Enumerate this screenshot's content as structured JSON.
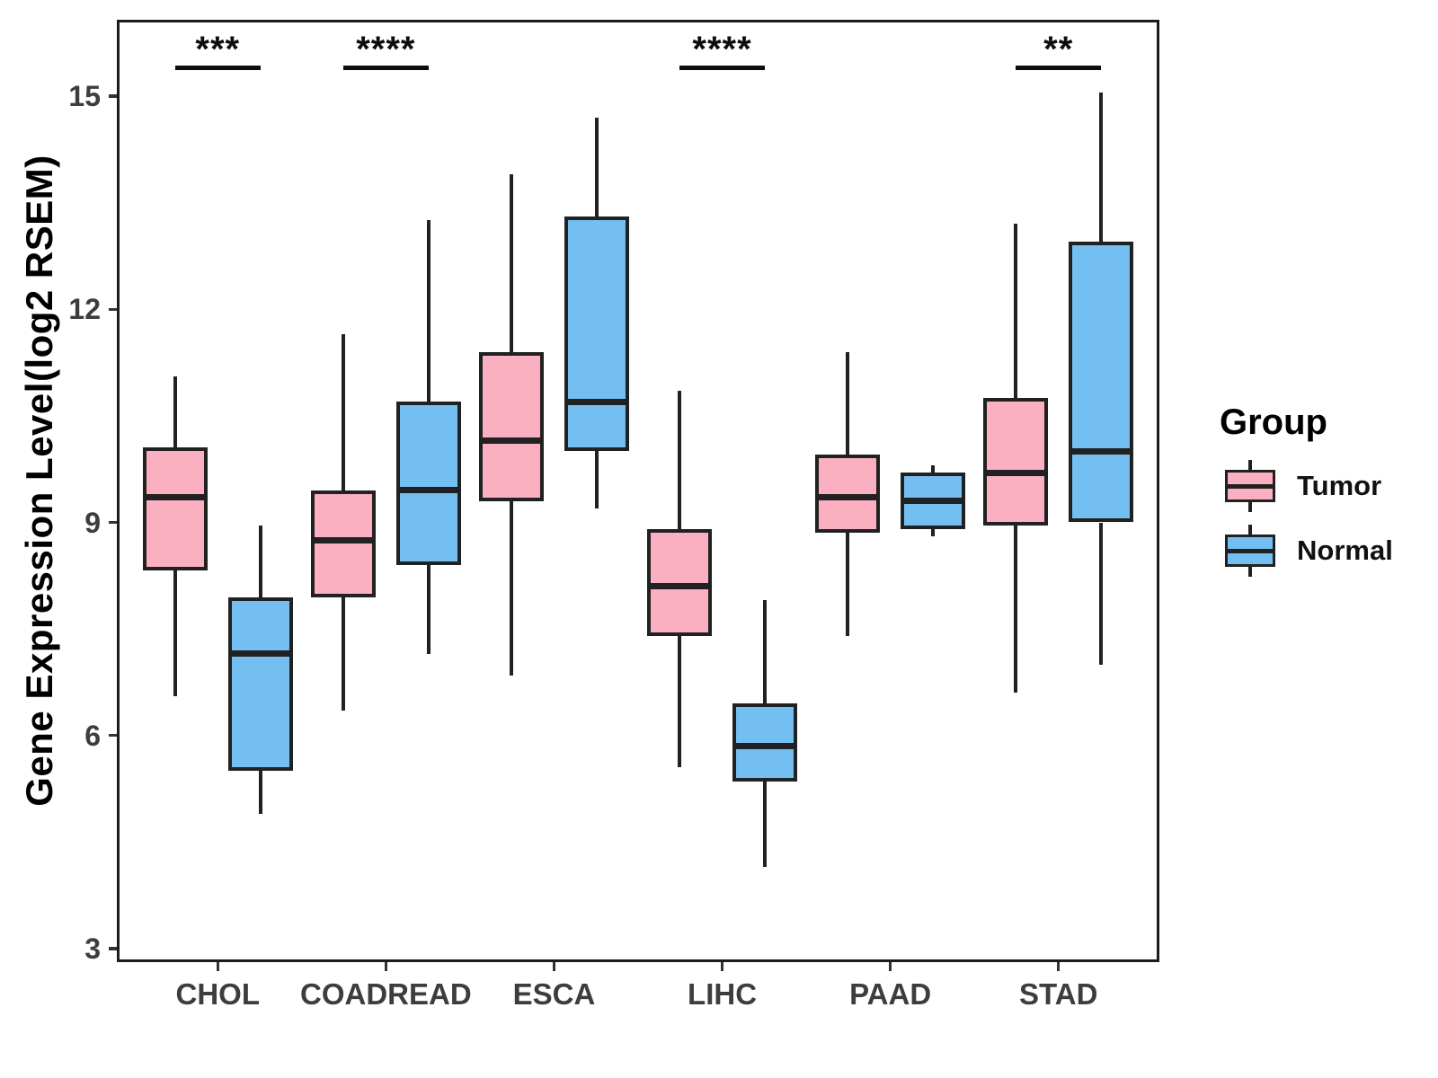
{
  "chart_data": {
    "type": "boxplot",
    "title": "",
    "xlabel": "",
    "ylabel": "Gene Expression Level(log2 RSEM)",
    "ylim": [
      2.8,
      16.1
    ],
    "yticks": [
      15,
      12,
      9,
      6,
      3
    ],
    "grid": false,
    "categories": [
      "CHOL",
      "COADREAD",
      "ESCA",
      "LIHC",
      "PAAD",
      "STAD"
    ],
    "legend": {
      "title": "Group",
      "position": "right"
    },
    "series": [
      {
        "name": "Tumor",
        "fill": "#FBB0C2",
        "boxes": [
          {
            "category": "CHOL",
            "min": 6.55,
            "q1": 8.32,
            "median": 9.35,
            "q3": 10.05,
            "max": 11.05
          },
          {
            "category": "COADREAD",
            "min": 6.35,
            "q1": 7.95,
            "median": 8.75,
            "q3": 9.45,
            "max": 11.65
          },
          {
            "category": "ESCA",
            "min": 6.85,
            "q1": 9.3,
            "median": 10.15,
            "q3": 11.4,
            "max": 13.9
          },
          {
            "category": "LIHC",
            "min": 5.55,
            "q1": 7.4,
            "median": 8.1,
            "q3": 8.9,
            "max": 10.85
          },
          {
            "category": "PAAD",
            "min": 7.4,
            "q1": 8.85,
            "median": 9.35,
            "q3": 9.95,
            "max": 11.4
          },
          {
            "category": "STAD",
            "min": 6.6,
            "q1": 8.95,
            "median": 9.7,
            "q3": 10.75,
            "max": 13.2
          }
        ]
      },
      {
        "name": "Normal",
        "fill": "#74BFF2",
        "boxes": [
          {
            "category": "CHOL",
            "min": 4.9,
            "q1": 5.5,
            "median": 7.15,
            "q3": 7.95,
            "max": 8.95
          },
          {
            "category": "COADREAD",
            "min": 7.15,
            "q1": 8.4,
            "median": 9.45,
            "q3": 10.7,
            "max": 13.25
          },
          {
            "category": "ESCA",
            "min": 9.2,
            "q1": 10.0,
            "median": 10.7,
            "q3": 13.3,
            "max": 14.7
          },
          {
            "category": "LIHC",
            "min": 4.15,
            "q1": 5.35,
            "median": 5.85,
            "q3": 6.45,
            "max": 7.9
          },
          {
            "category": "PAAD",
            "min": 8.8,
            "q1": 8.9,
            "median": 9.3,
            "q3": 9.7,
            "max": 9.8
          },
          {
            "category": "STAD",
            "min": 7.0,
            "q1": 9.0,
            "median": 10.0,
            "q3": 12.95,
            "max": 15.05
          }
        ]
      }
    ],
    "significance": [
      {
        "category": "CHOL",
        "label": "***"
      },
      {
        "category": "COADREAD",
        "label": "****"
      },
      {
        "category": "LIHC",
        "label": "****"
      },
      {
        "category": "STAD",
        "label": "**"
      }
    ]
  },
  "style": {
    "tumor_fill": "#FBB0C2",
    "normal_fill": "#74BFF2",
    "line_color": "#212121",
    "axis_text_color": "#3d3d3d",
    "title_color": "#000000",
    "background": "#ffffff"
  }
}
